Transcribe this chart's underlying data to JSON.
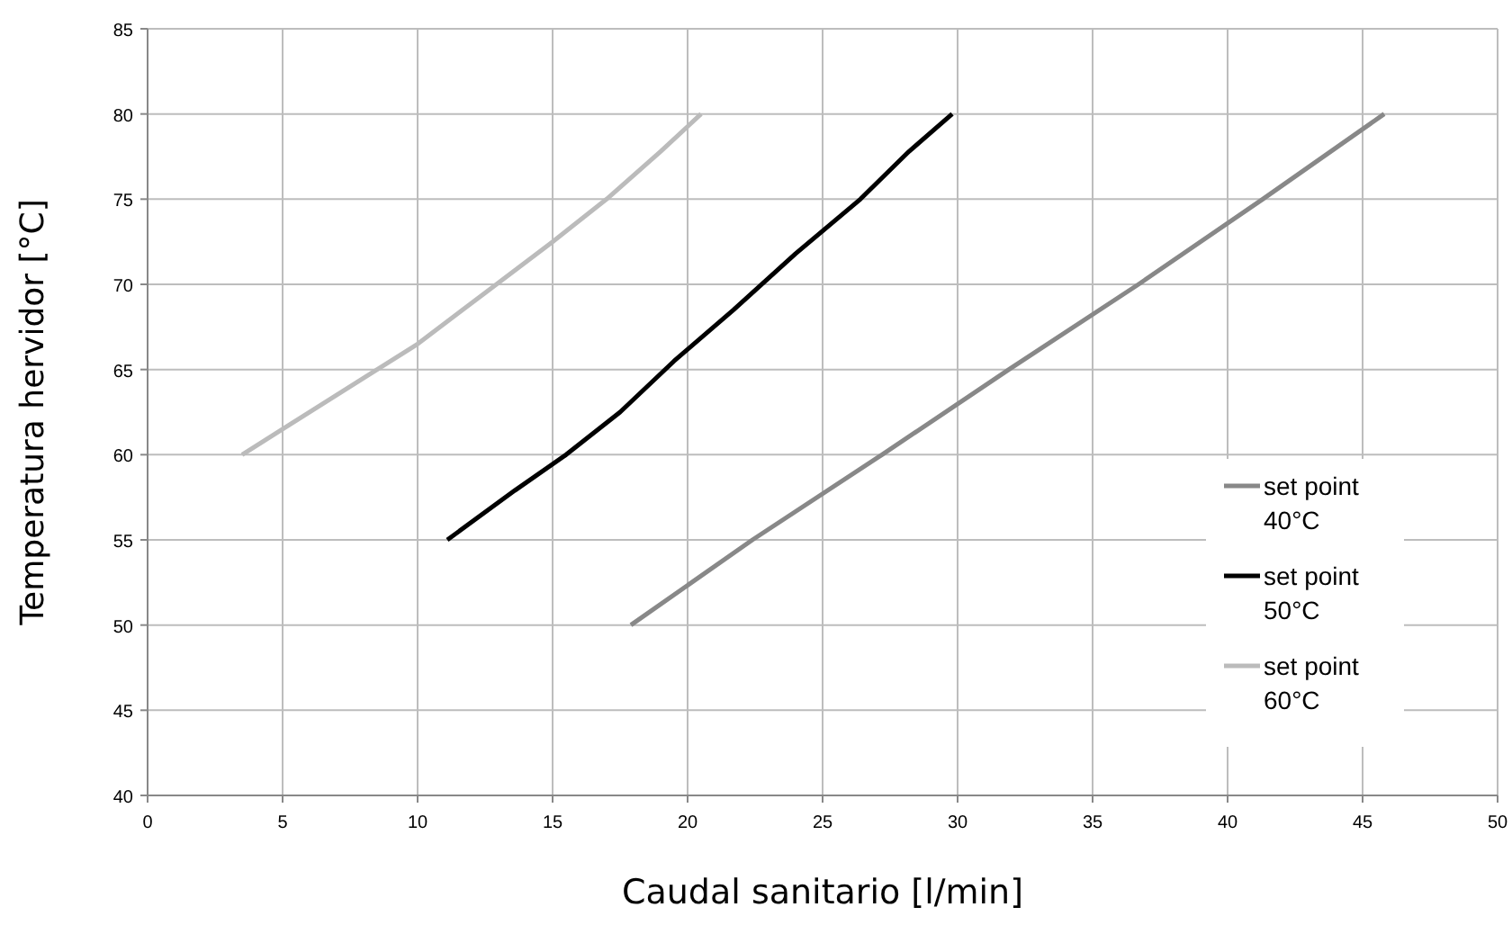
{
  "chart_data": {
    "type": "line",
    "xlabel": "Caudal sanitario [l/min]",
    "ylabel": "Temperatura hervidor [°C]",
    "xlim": [
      0,
      50
    ],
    "xticks": [
      0,
      5,
      10,
      15,
      20,
      25,
      30,
      35,
      40,
      45,
      50
    ],
    "ylim": [
      40,
      85
    ],
    "yticks": [
      40,
      45,
      50,
      55,
      60,
      65,
      70,
      75,
      80,
      85
    ],
    "grid": true,
    "legend": "right",
    "marker": "none",
    "line_style": "solid",
    "series": [
      {
        "name": "set point 40°C",
        "color": "#888888",
        "x": [
          17.9,
          22.4,
          27.2,
          31.9,
          36.7,
          41.3,
          45.8
        ],
        "values": [
          50,
          55,
          60,
          65,
          70,
          75,
          80
        ]
      },
      {
        "name": "set point 50°C",
        "color": "#000000",
        "x": [
          11.1,
          13.6,
          15.5,
          17.5,
          19.5,
          21.7,
          24,
          26.4,
          28.2,
          29.8
        ],
        "values": [
          55,
          57.9,
          60,
          62.5,
          65.5,
          68.5,
          71.8,
          75,
          77.8,
          80
        ]
      },
      {
        "name": "set point 60°C",
        "color": "#bbbbbb",
        "x": [
          3.5,
          5,
          8,
          10,
          12.5,
          15,
          17,
          19,
          20.5
        ],
        "values": [
          60,
          61.5,
          64.5,
          66.5,
          69.5,
          72.5,
          75,
          77.8,
          80
        ]
      }
    ]
  }
}
